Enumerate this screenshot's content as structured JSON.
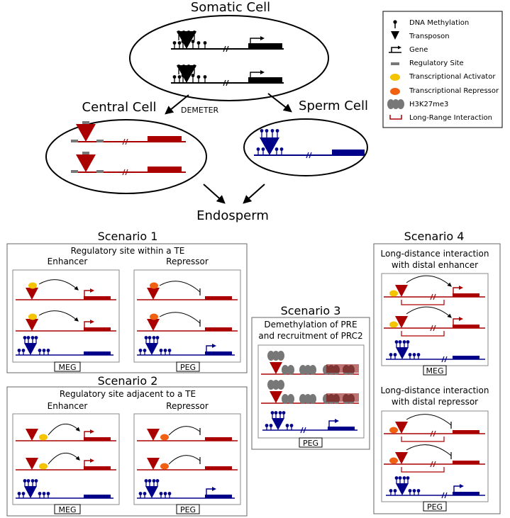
{
  "title": "Somatic Cell",
  "central_cell": "Central Cell",
  "sperm_cell": "Sperm Cell",
  "enzyme": "DEMETER",
  "endosperm": "Endosperm",
  "legend": {
    "methylation": "DNA Methylation",
    "transposon": "Transposon",
    "gene": "Gene",
    "regulatory": "Regulatory Site",
    "activator": "Transcriptional Activator",
    "repressor": "Transcriptional Repressor",
    "h3k27": "H3K27me3",
    "longrange": "Long-Range Interaction"
  },
  "scenario1": {
    "title": "Scenario 1",
    "subtitle": "Regulatory site within a TE",
    "enhancer": "Enhancer",
    "repressor": "Repressor",
    "meg": "MEG",
    "peg": "PEG"
  },
  "scenario2": {
    "title": "Scenario 2",
    "subtitle": "Regulatory site adjacent to a TE",
    "enhancer": "Enhancer",
    "repressor": "Repressor",
    "meg": "MEG",
    "peg": "PEG"
  },
  "scenario3": {
    "title": "Scenario 3",
    "subtitle1": "Demethylation of PRE",
    "subtitle2": "and recruitment of PRC2",
    "peg": "PEG"
  },
  "scenario4": {
    "title": "Scenario 4",
    "sub_a1": "Long-distance interaction",
    "sub_a2": "with distal enhancer",
    "meg": "MEG",
    "sub_b1": "Long-distance interaction",
    "sub_b2": "with distal repressor",
    "peg": "PEG"
  },
  "colors": {
    "maternal": "#aa0000",
    "paternal": "#000088",
    "activator": "#f5c400",
    "repressor": "#f06010",
    "regulatory": "#777777",
    "h3k27": "#777777"
  }
}
